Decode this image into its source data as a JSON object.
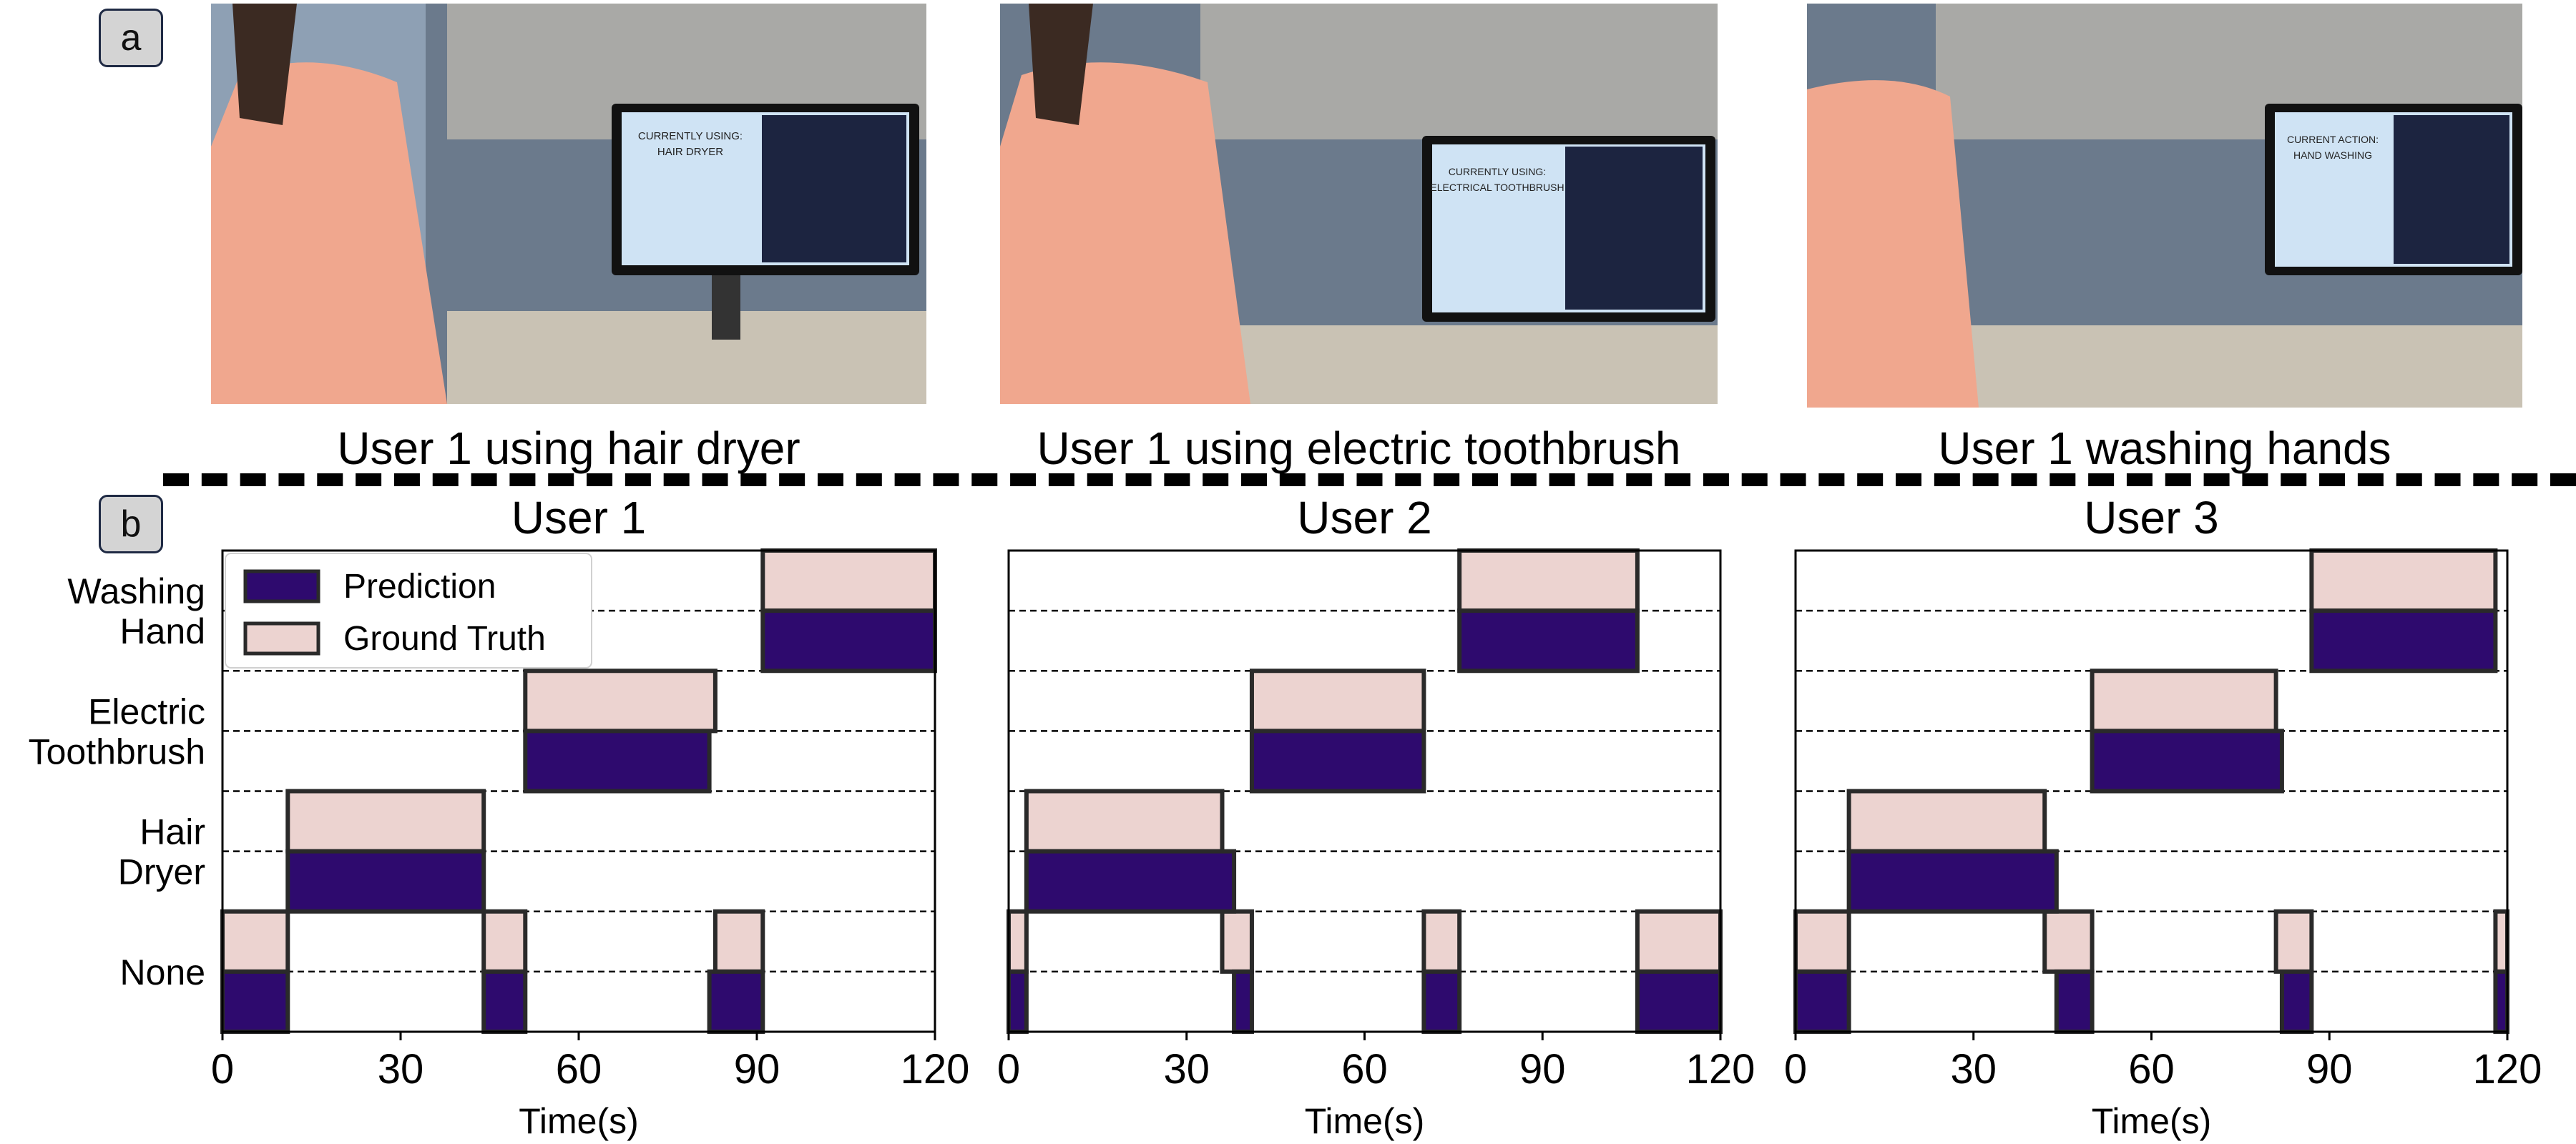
{
  "panel_a": {
    "label": "a",
    "photos": [
      {
        "caption": "User 1 using hair dryer",
        "screen_title_1": "CURRENTLY USING:",
        "screen_title_2": "HAIR DRYER"
      },
      {
        "caption": "User 1 using electric toothbrush",
        "screen_title_1": "CURRENTLY USING:",
        "screen_title_2": "ELECTRICAL TOOTHBRUSH"
      },
      {
        "caption": "User 1 washing hands",
        "screen_title_1": "CURRENT ACTION:",
        "screen_title_2": "HAND WASHING"
      }
    ]
  },
  "panel_b": {
    "label": "b"
  },
  "colors": {
    "prediction": "#2e0a6e",
    "ground_truth": "#ecd3d0",
    "edge": "#2a2a2a"
  },
  "chart_data": [
    {
      "type": "bar",
      "title": "User 1",
      "xlabel": "Time(s)",
      "xlim": [
        0,
        120
      ],
      "xticks": [
        "0",
        "30",
        "60",
        "90",
        "120"
      ],
      "categories": [
        "None",
        "Hair\nDryer",
        "Electric\nToothbrush",
        "Washing\nHand"
      ],
      "legend": {
        "placement": "top-left",
        "entries": [
          "Prediction",
          "Ground Truth"
        ]
      },
      "series": [
        {
          "name": "Prediction",
          "segments": [
            {
              "class": "None",
              "start": 0,
              "end": 11
            },
            {
              "class": "Hair Dryer",
              "start": 11,
              "end": 44
            },
            {
              "class": "None",
              "start": 44,
              "end": 51
            },
            {
              "class": "Electric Toothbrush",
              "start": 51,
              "end": 82
            },
            {
              "class": "None",
              "start": 82,
              "end": 91
            },
            {
              "class": "Washing Hand",
              "start": 91,
              "end": 120
            }
          ]
        },
        {
          "name": "Ground Truth",
          "segments": [
            {
              "class": "None",
              "start": 0,
              "end": 11
            },
            {
              "class": "Hair Dryer",
              "start": 11,
              "end": 44
            },
            {
              "class": "None",
              "start": 44,
              "end": 51
            },
            {
              "class": "Electric Toothbrush",
              "start": 51,
              "end": 83
            },
            {
              "class": "None",
              "start": 83,
              "end": 91
            },
            {
              "class": "Washing Hand",
              "start": 91,
              "end": 120
            }
          ]
        }
      ]
    },
    {
      "type": "bar",
      "title": "User 2",
      "xlabel": "Time(s)",
      "xlim": [
        0,
        120
      ],
      "xticks": [
        "0",
        "30",
        "60",
        "90",
        "120"
      ],
      "categories": [
        "None",
        "Hair Dryer",
        "Electric Toothbrush",
        "Washing Hand"
      ],
      "series": [
        {
          "name": "Prediction",
          "segments": [
            {
              "class": "None",
              "start": 0,
              "end": 3
            },
            {
              "class": "Hair Dryer",
              "start": 3,
              "end": 38
            },
            {
              "class": "None",
              "start": 38,
              "end": 41
            },
            {
              "class": "Electric Toothbrush",
              "start": 41,
              "end": 70
            },
            {
              "class": "None",
              "start": 70,
              "end": 76
            },
            {
              "class": "Washing Hand",
              "start": 76,
              "end": 106
            },
            {
              "class": "None",
              "start": 106,
              "end": 120
            }
          ]
        },
        {
          "name": "Ground Truth",
          "segments": [
            {
              "class": "None",
              "start": 0,
              "end": 3
            },
            {
              "class": "Hair Dryer",
              "start": 3,
              "end": 36
            },
            {
              "class": "None",
              "start": 36,
              "end": 41
            },
            {
              "class": "Electric Toothbrush",
              "start": 41,
              "end": 70
            },
            {
              "class": "None",
              "start": 70,
              "end": 76
            },
            {
              "class": "Washing Hand",
              "start": 76,
              "end": 106
            },
            {
              "class": "None",
              "start": 106,
              "end": 120
            }
          ]
        }
      ]
    },
    {
      "type": "bar",
      "title": "User 3",
      "xlabel": "Time(s)",
      "xlim": [
        0,
        120
      ],
      "xticks": [
        "0",
        "30",
        "60",
        "90",
        "120"
      ],
      "categories": [
        "None",
        "Hair Dryer",
        "Electric Toothbrush",
        "Washing Hand"
      ],
      "series": [
        {
          "name": "Prediction",
          "segments": [
            {
              "class": "None",
              "start": 0,
              "end": 9
            },
            {
              "class": "Hair Dryer",
              "start": 9,
              "end": 44
            },
            {
              "class": "None",
              "start": 44,
              "end": 50
            },
            {
              "class": "Electric Toothbrush",
              "start": 50,
              "end": 82
            },
            {
              "class": "None",
              "start": 82,
              "end": 87
            },
            {
              "class": "Washing Hand",
              "start": 87,
              "end": 118
            },
            {
              "class": "None",
              "start": 118,
              "end": 120
            }
          ]
        },
        {
          "name": "Ground Truth",
          "segments": [
            {
              "class": "None",
              "start": 0,
              "end": 9
            },
            {
              "class": "Hair Dryer",
              "start": 9,
              "end": 42
            },
            {
              "class": "None",
              "start": 42,
              "end": 50
            },
            {
              "class": "Electric Toothbrush",
              "start": 50,
              "end": 81
            },
            {
              "class": "None",
              "start": 81,
              "end": 87
            },
            {
              "class": "Washing Hand",
              "start": 87,
              "end": 118
            },
            {
              "class": "None",
              "start": 118,
              "end": 120
            }
          ]
        }
      ]
    }
  ]
}
